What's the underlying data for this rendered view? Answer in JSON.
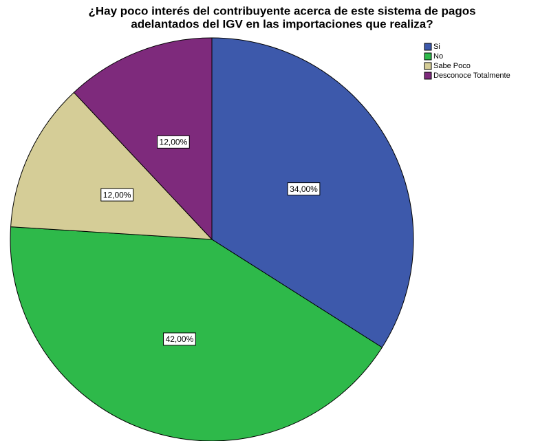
{
  "chart_data": {
    "type": "pie",
    "title": [
      "¿Hay poco interés del contribuyente acerca de este sistema de pagos",
      "adelantados del IGV en las importaciones que realiza?"
    ],
    "categories": [
      "Si",
      "No",
      "Sabe Poco",
      "Desconoce Totalmente"
    ],
    "values": [
      34,
      42,
      12,
      12
    ],
    "value_labels": [
      "34,00%",
      "42,00%",
      "12,00%",
      "12,00%"
    ],
    "colors": [
      "#3d59ab",
      "#2eb94a",
      "#d5cd97",
      "#7e2a7c"
    ],
    "legend": "top-right"
  }
}
